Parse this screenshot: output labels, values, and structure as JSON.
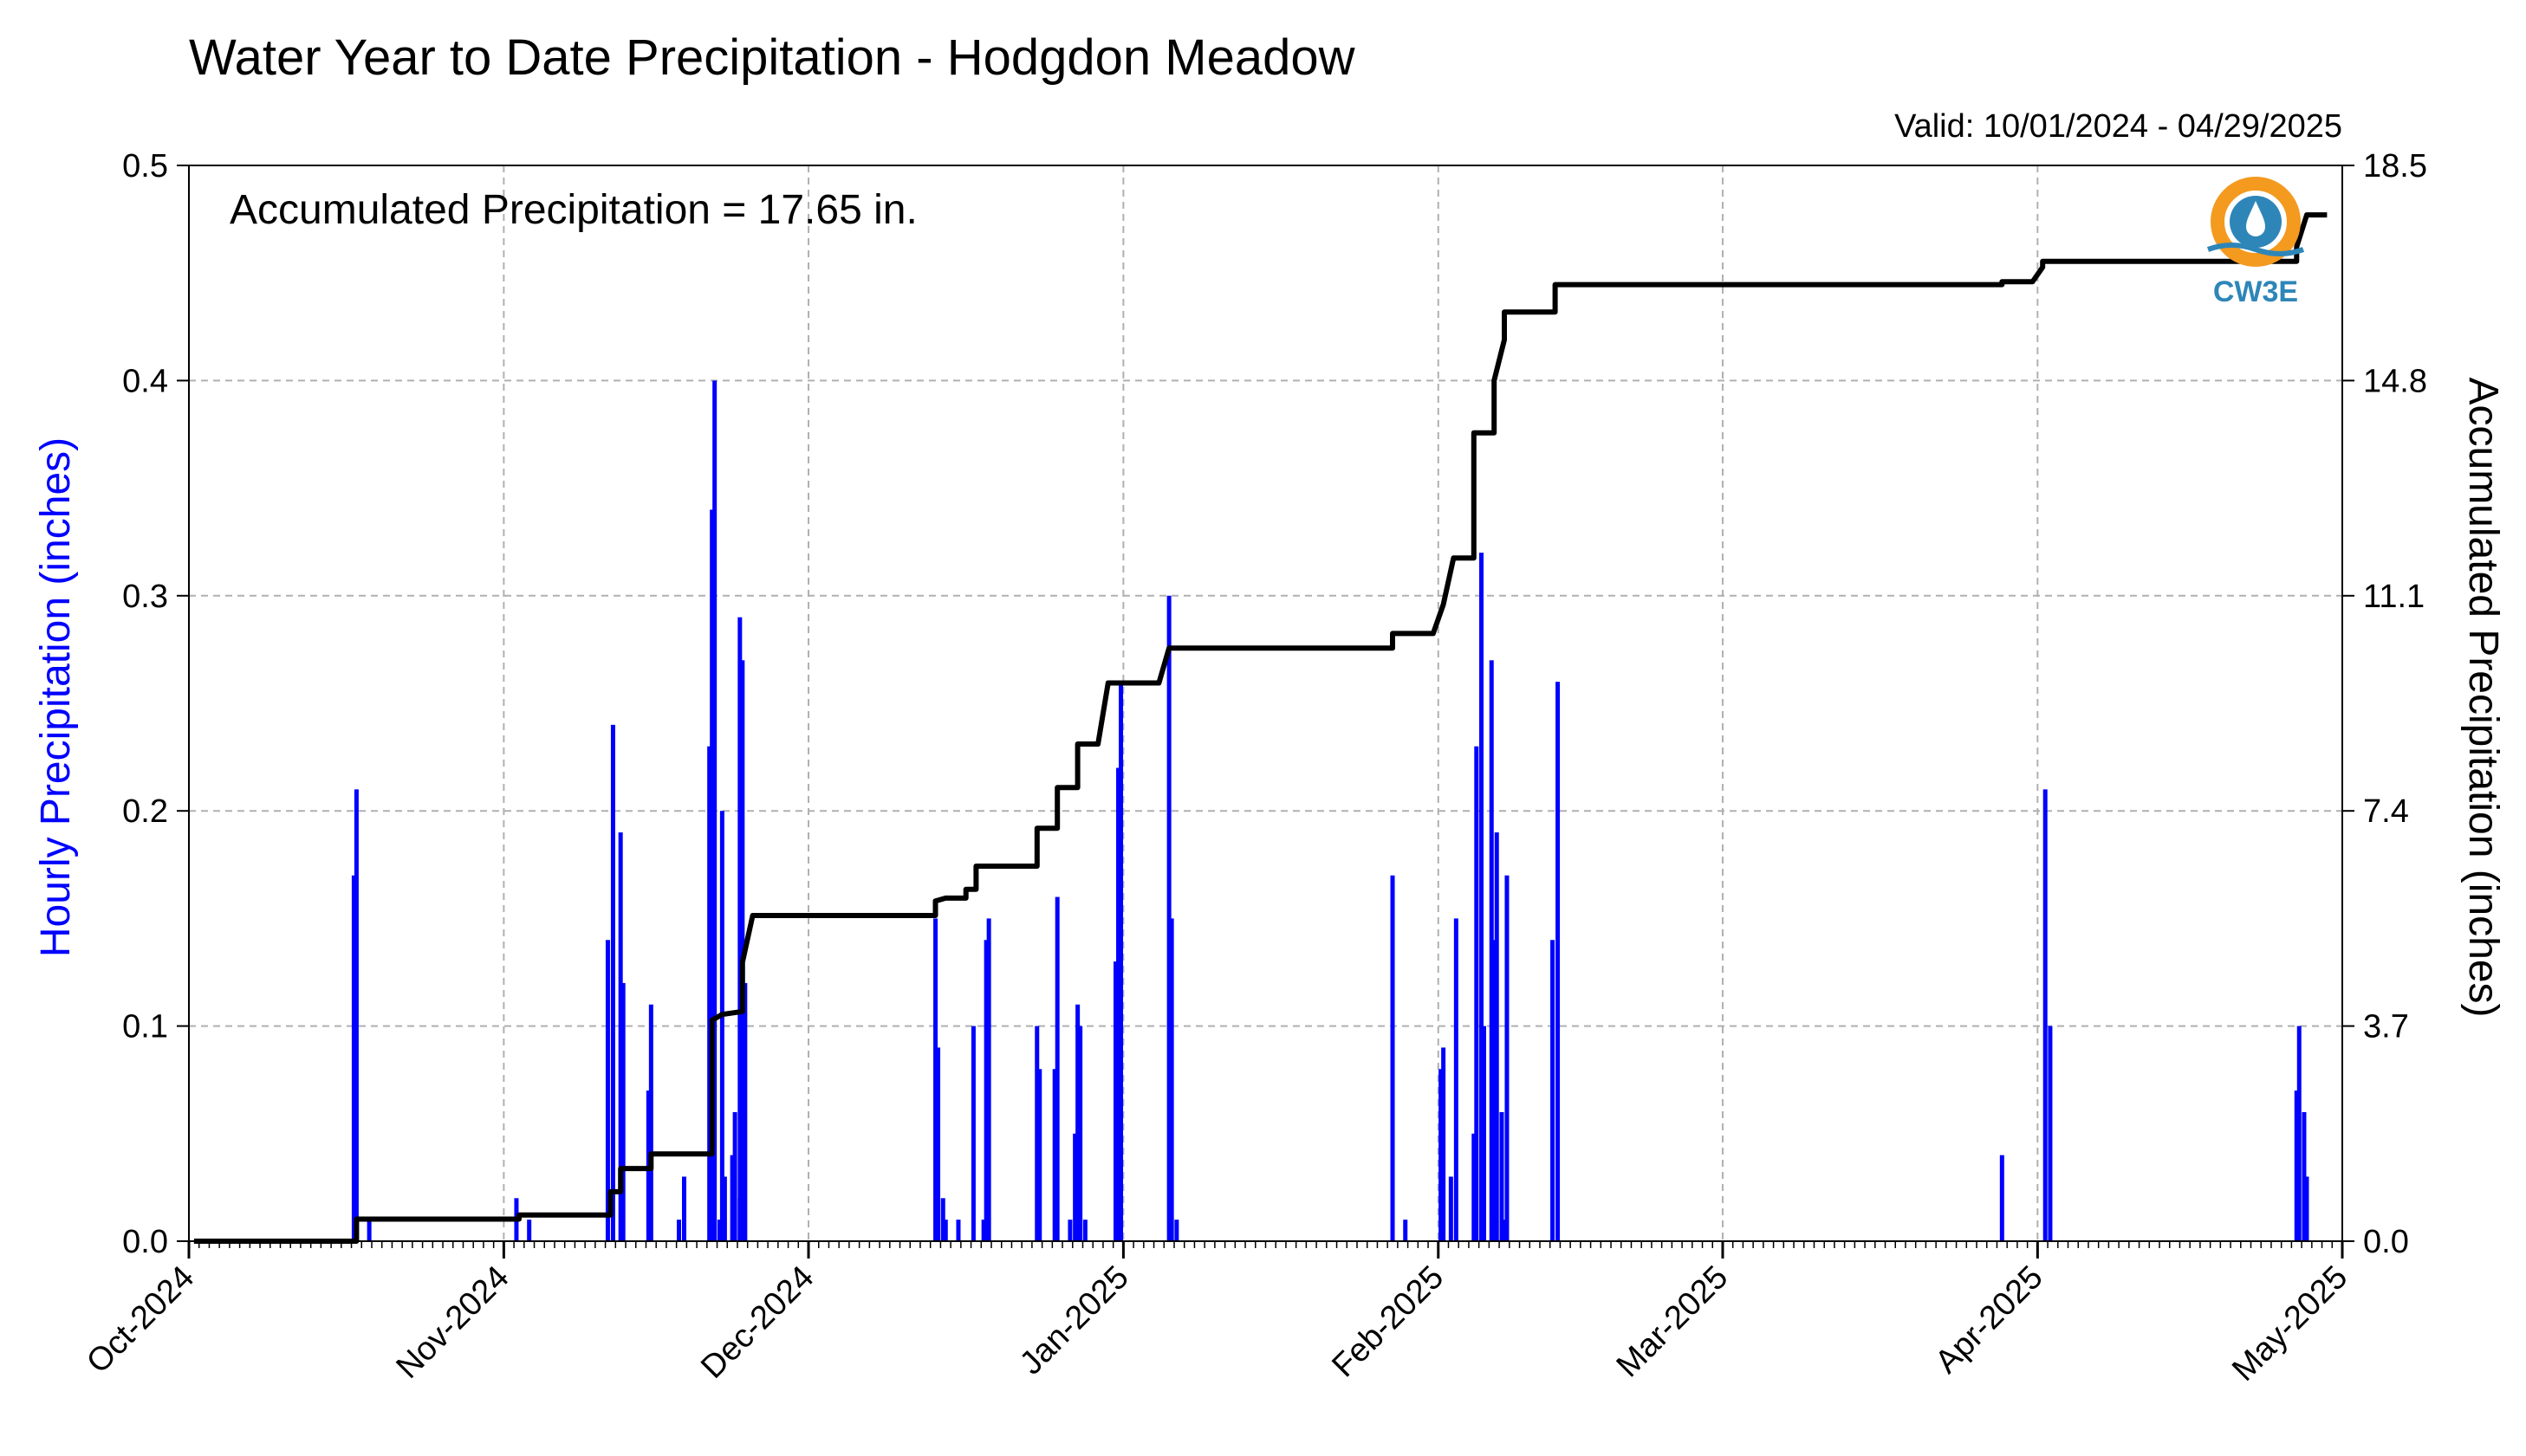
{
  "colors": {
    "bars": "#0000ff",
    "accumulated": "#000000",
    "grid": "#b0b0b0",
    "logo_orange": "#f39a1f",
    "logo_blue": "#2e86b8"
  },
  "chart_data": {
    "type": "bar+line",
    "title": "Water Year to Date Precipitation - Hodgdon Meadow",
    "subtitle": "Valid: 10/01/2024 - 04/29/2025",
    "annotation": "Accumulated Precipitation = 17.65 in.",
    "logo_text": "CW3E",
    "ylabel_left": "Hourly Precipitation (inches)",
    "ylabel_right": "Accumulated Precipitation (inches)",
    "xlim": [
      "2024-10-01",
      "2025-05-01"
    ],
    "ylim_left": [
      0,
      0.5
    ],
    "ylim_right": [
      0,
      18.5
    ],
    "xticks": [
      "Oct-2024",
      "Nov-2024",
      "Dec-2024",
      "Jan-2025",
      "Feb-2025",
      "Mar-2025",
      "Apr-2025",
      "May-2025"
    ],
    "xtick_dates": [
      "2024-10-01",
      "2024-11-01",
      "2024-12-01",
      "2025-01-01",
      "2025-02-01",
      "2025-03-01",
      "2025-04-01",
      "2025-05-01"
    ],
    "yticks_left": [
      "0.0",
      "0.1",
      "0.2",
      "0.3",
      "0.4",
      "0.5"
    ],
    "yticks_right": [
      "0.0",
      "3.7",
      "7.4",
      "11.1",
      "14.8",
      "18.5"
    ],
    "grid": true,
    "hourly_precip": [
      [
        "2024-10-17",
        0.17
      ],
      [
        "2024-10-17",
        0.21
      ],
      [
        "2024-10-18",
        0.01
      ],
      [
        "2024-11-02",
        0.02
      ],
      [
        "2024-11-03",
        0.01
      ],
      [
        "2024-11-11",
        0.24
      ],
      [
        "2024-11-11",
        0.14
      ],
      [
        "2024-11-12",
        0.19
      ],
      [
        "2024-11-12",
        0.12
      ],
      [
        "2024-11-15",
        0.07
      ],
      [
        "2024-11-15",
        0.11
      ],
      [
        "2024-11-18",
        0.03
      ],
      [
        "2024-11-18",
        0.01
      ],
      [
        "2024-11-21",
        0.34
      ],
      [
        "2024-11-21",
        0.4
      ],
      [
        "2024-11-21",
        0.23
      ],
      [
        "2024-11-22",
        0.2
      ],
      [
        "2024-11-22",
        0.03
      ],
      [
        "2024-11-22",
        0.01
      ],
      [
        "2024-11-23",
        0.04
      ],
      [
        "2024-11-23",
        0.06
      ],
      [
        "2024-11-24",
        0.29
      ],
      [
        "2024-11-24",
        0.27
      ],
      [
        "2024-11-24",
        0.12
      ],
      [
        "2024-11-24",
        0.02
      ],
      [
        "2024-12-13",
        0.15
      ],
      [
        "2024-12-13",
        0.09
      ],
      [
        "2024-12-14",
        0.02
      ],
      [
        "2024-12-14",
        0.01
      ],
      [
        "2024-12-15",
        0.01
      ],
      [
        "2024-12-17",
        0.1
      ],
      [
        "2024-12-18",
        0.14
      ],
      [
        "2024-12-18",
        0.15
      ],
      [
        "2024-12-18",
        0.01
      ],
      [
        "2024-12-23",
        0.1
      ],
      [
        "2024-12-23",
        0.08
      ],
      [
        "2024-12-25",
        0.08
      ],
      [
        "2024-12-25",
        0.16
      ],
      [
        "2024-12-26",
        0.01
      ],
      [
        "2024-12-27",
        0.05
      ],
      [
        "2024-12-27",
        0.11
      ],
      [
        "2024-12-27",
        0.1
      ],
      [
        "2024-12-28",
        0.01
      ],
      [
        "2024-12-31",
        0.22
      ],
      [
        "2024-12-31",
        0.26
      ],
      [
        "2024-12-31",
        0.13
      ],
      [
        "2025-01-05",
        0.3
      ],
      [
        "2025-01-05",
        0.15
      ],
      [
        "2025-01-06",
        0.01
      ],
      [
        "2025-01-27",
        0.17
      ],
      [
        "2025-01-28",
        0.01
      ],
      [
        "2025-02-01",
        0.08
      ],
      [
        "2025-02-01",
        0.09
      ],
      [
        "2025-02-02",
        0.15
      ],
      [
        "2025-02-02",
        0.03
      ],
      [
        "2025-02-04",
        0.05
      ],
      [
        "2025-02-04",
        0.23
      ],
      [
        "2025-02-05",
        0.32
      ],
      [
        "2025-02-05",
        0.1
      ],
      [
        "2025-02-06",
        0.19
      ],
      [
        "2025-02-06",
        0.27
      ],
      [
        "2025-02-06",
        0.14
      ],
      [
        "2025-02-07",
        0.17
      ],
      [
        "2025-02-07",
        0.06
      ],
      [
        "2025-02-07",
        0.01
      ],
      [
        "2025-02-12",
        0.26
      ],
      [
        "2025-02-12",
        0.14
      ],
      [
        "2025-03-28",
        0.04
      ],
      [
        "2025-04-01",
        0.21
      ],
      [
        "2025-04-02",
        0.1
      ],
      [
        "2025-04-26",
        0.07
      ],
      [
        "2025-04-26",
        0.1
      ],
      [
        "2025-04-27",
        0.06
      ],
      [
        "2025-04-27",
        0.03
      ]
    ],
    "accumulated": [
      [
        "2024-10-01",
        0.0
      ],
      [
        "2024-10-17",
        0.0
      ],
      [
        "2024-10-17",
        0.38
      ],
      [
        "2024-11-02",
        0.38
      ],
      [
        "2024-11-02",
        0.45
      ],
      [
        "2024-11-11",
        0.45
      ],
      [
        "2024-11-11",
        0.85
      ],
      [
        "2024-11-12",
        0.85
      ],
      [
        "2024-11-12",
        1.25
      ],
      [
        "2024-11-15",
        1.25
      ],
      [
        "2024-11-15",
        1.5
      ],
      [
        "2024-11-21",
        1.5
      ],
      [
        "2024-11-21",
        3.0
      ],
      [
        "2024-11-21",
        3.8
      ],
      [
        "2024-11-22",
        3.9
      ],
      [
        "2024-11-24",
        3.95
      ],
      [
        "2024-11-24",
        4.8
      ],
      [
        "2024-11-25",
        5.6
      ],
      [
        "2024-12-13",
        5.6
      ],
      [
        "2024-12-13",
        5.85
      ],
      [
        "2024-12-14",
        5.9
      ],
      [
        "2024-12-16",
        5.9
      ],
      [
        "2024-12-16",
        6.05
      ],
      [
        "2024-12-17",
        6.05
      ],
      [
        "2024-12-17",
        6.45
      ],
      [
        "2024-12-23",
        6.45
      ],
      [
        "2024-12-23",
        7.1
      ],
      [
        "2024-12-25",
        7.1
      ],
      [
        "2024-12-25",
        7.8
      ],
      [
        "2024-12-27",
        7.8
      ],
      [
        "2024-12-27",
        8.55
      ],
      [
        "2024-12-29",
        8.55
      ],
      [
        "2024-12-30",
        9.6
      ],
      [
        "2025-01-04",
        9.6
      ],
      [
        "2025-01-05",
        10.2
      ],
      [
        "2025-01-27",
        10.2
      ],
      [
        "2025-01-27",
        10.45
      ],
      [
        "2025-01-31",
        10.45
      ],
      [
        "2025-02-01",
        10.95
      ],
      [
        "2025-02-02",
        11.75
      ],
      [
        "2025-02-04",
        11.75
      ],
      [
        "2025-02-04",
        13.9
      ],
      [
        "2025-02-06",
        13.9
      ],
      [
        "2025-02-06",
        14.8
      ],
      [
        "2025-02-07",
        15.5
      ],
      [
        "2025-02-07",
        15.98
      ],
      [
        "2025-02-12",
        15.98
      ],
      [
        "2025-02-12",
        16.45
      ],
      [
        "2025-03-28",
        16.45
      ],
      [
        "2025-03-28",
        16.5
      ],
      [
        "2025-03-31",
        16.5
      ],
      [
        "2025-04-01",
        16.75
      ],
      [
        "2025-04-01",
        16.85
      ],
      [
        "2025-04-26",
        16.85
      ],
      [
        "2025-04-26",
        17.1
      ],
      [
        "2025-04-27",
        17.65
      ],
      [
        "2025-04-29",
        17.65
      ]
    ]
  }
}
